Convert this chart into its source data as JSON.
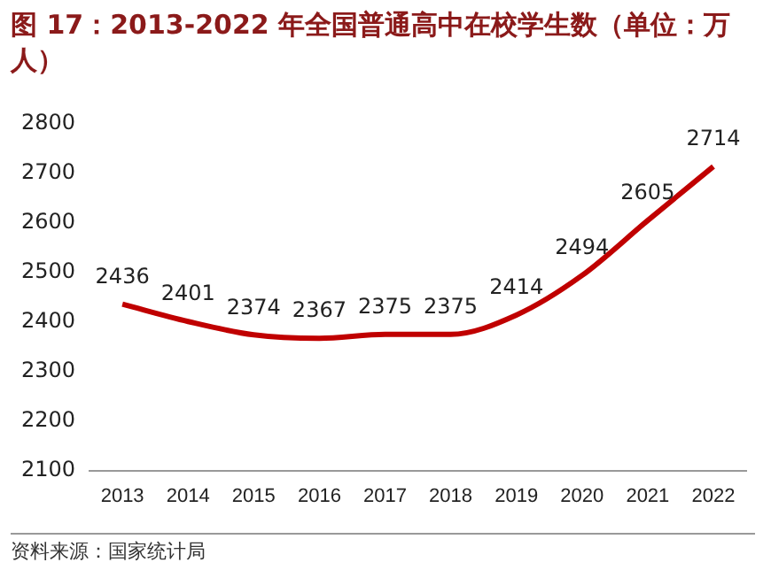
{
  "chart_data": {
    "type": "line",
    "title": "图 17：2013-2022 年全国普通高中在校学生数（单位：万人）",
    "categories": [
      "2013",
      "2014",
      "2015",
      "2016",
      "2017",
      "2018",
      "2019",
      "2020",
      "2021",
      "2022"
    ],
    "series": [
      {
        "color": "#c00000",
        "values": [
          2436,
          2401,
          2374,
          2367,
          2375,
          2375,
          2414,
          2494,
          2605,
          2714
        ]
      }
    ],
    "ylim": [
      2100,
      2800
    ],
    "yticks": [
      2100,
      2200,
      2300,
      2400,
      2500,
      2600,
      2700,
      2800
    ],
    "grid": false,
    "legend": false,
    "marker": "none",
    "data_labels": true,
    "annotations": [
      "资料来源：国家统计局"
    ]
  }
}
